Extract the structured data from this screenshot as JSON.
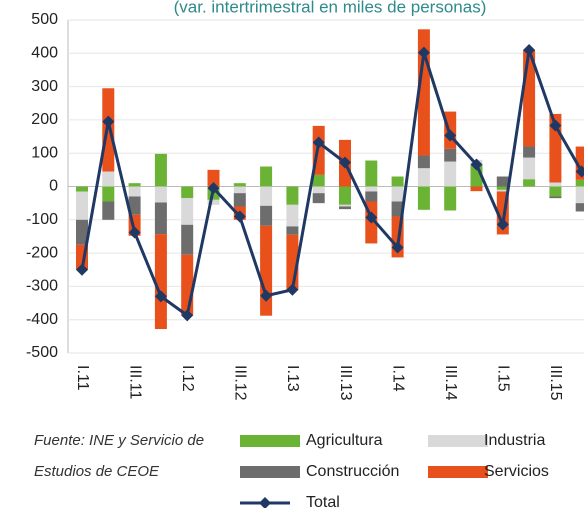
{
  "chart_data": {
    "type": "stacked-bar-line",
    "title": "(var. intertrimestral en miles de personas)",
    "source": [
      "Fuente: INE y Servicio de",
      "Estudios de CEOE"
    ],
    "categories": [
      "I.11",
      null,
      "III.11",
      null,
      "I.12",
      null,
      "III.12",
      null,
      "I.13",
      null,
      "III.13",
      null,
      "I.14",
      null,
      "III.14",
      null,
      "I.15",
      null,
      "III.15",
      null
    ],
    "ylim": [
      -500,
      500
    ],
    "yticks": [
      -500,
      -400,
      -300,
      -200,
      -100,
      0,
      100,
      200,
      300,
      400,
      500
    ],
    "grid": true,
    "series": [
      {
        "name": "Agricultura",
        "color": "#6ab335",
        "values": [
          -15,
          -45,
          10,
          98,
          -35,
          -40,
          10,
          60,
          -55,
          35,
          -55,
          78,
          30,
          -70,
          -72,
          65,
          -10,
          22,
          -30,
          20
        ]
      },
      {
        "name": "Industria",
        "color": "#d9d9d9",
        "values": [
          -85,
          45,
          -30,
          -48,
          -80,
          -15,
          -20,
          -58,
          -65,
          -20,
          -5,
          -15,
          -45,
          55,
          75,
          15,
          -5,
          65,
          12,
          -50
        ]
      },
      {
        "name": "Construcción",
        "color": "#6d6d6d",
        "values": [
          -75,
          -55,
          -55,
          -95,
          -90,
          0,
          -40,
          -60,
          -25,
          -30,
          -8,
          -30,
          -45,
          38,
          38,
          0,
          30,
          33,
          -5,
          -25
        ]
      },
      {
        "name": "Servicios",
        "color": "#e8501c",
        "values": [
          -75,
          250,
          -63,
          -285,
          -182,
          50,
          -40,
          -270,
          -165,
          147,
          140,
          -126,
          -123,
          379,
          112,
          -14,
          -129,
          290,
          206,
          100
        ]
      },
      {
        "name": "Total",
        "color": "#1f3864",
        "line": true,
        "values": [
          -250,
          195,
          -138,
          -330,
          -387,
          -5,
          -90,
          -328,
          -310,
          132,
          72,
          -93,
          -183,
          402,
          153,
          66,
          -114,
          410,
          183,
          45
        ]
      }
    ]
  }
}
